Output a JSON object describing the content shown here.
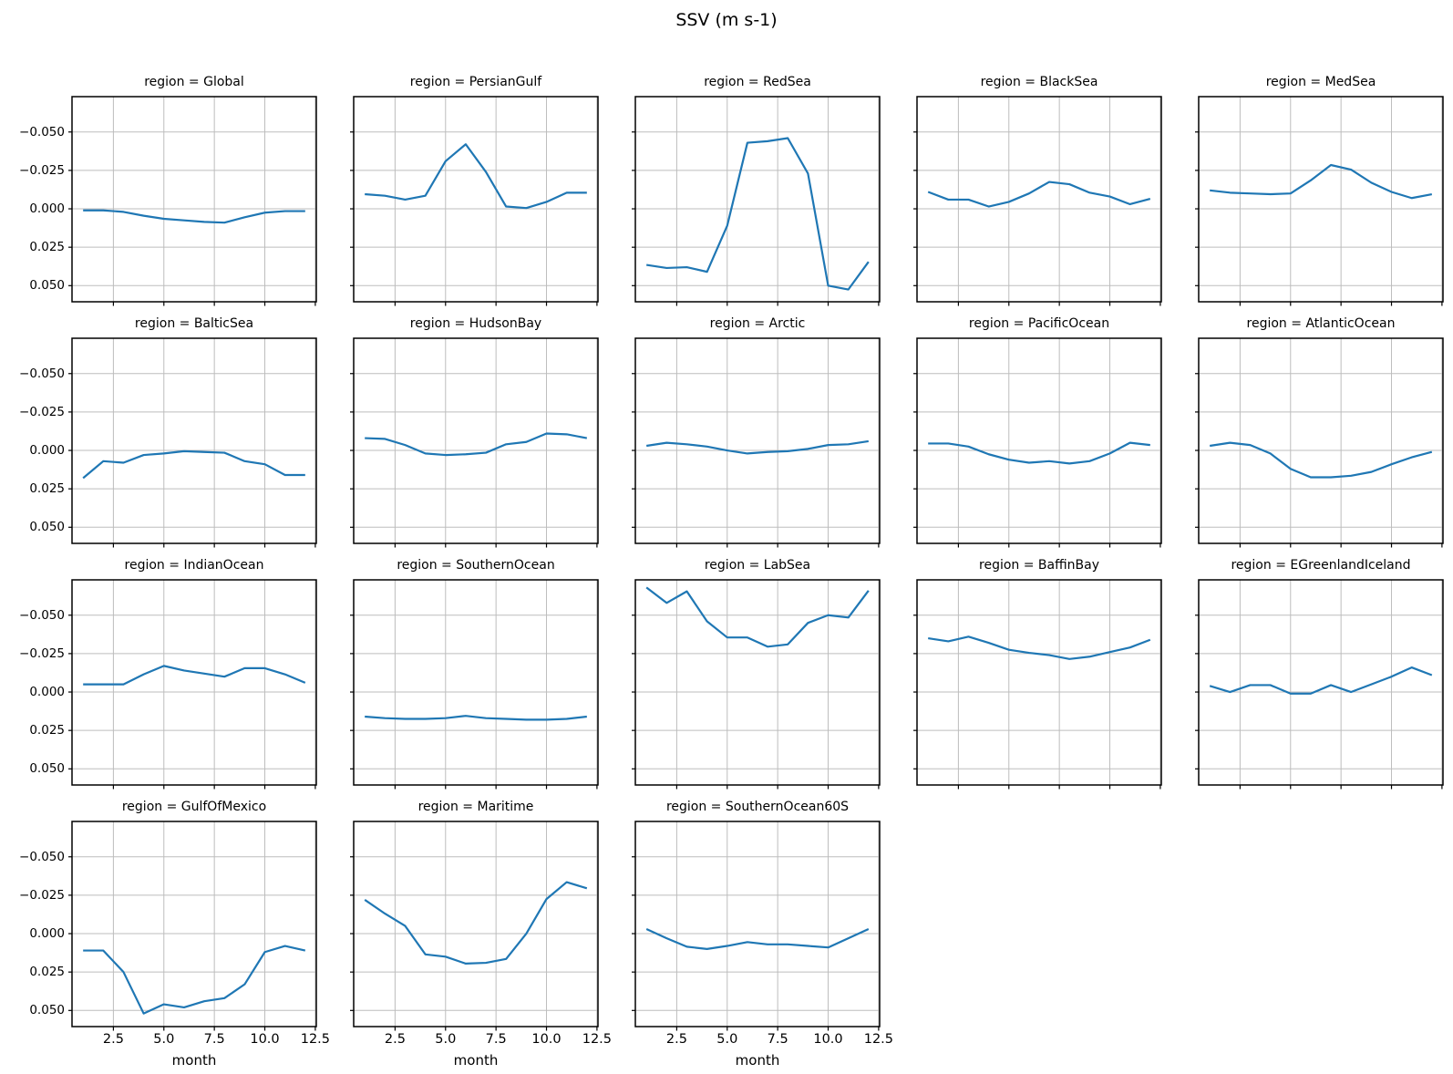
{
  "chart_data": {
    "type": "line",
    "title": "SSV (m s-1)",
    "xlabel": "month",
    "line_color": "#1f77b4",
    "grid_color": "#bdbdbd",
    "spine_color": "#000000",
    "grid": true,
    "legend": "none",
    "y_axis_inverted": true,
    "x": [
      1,
      2,
      3,
      4,
      5,
      6,
      7,
      8,
      9,
      10,
      11,
      12
    ],
    "xlim": [
      0.45,
      12.55
    ],
    "ylim_top": -0.073,
    "ylim_bottom": 0.0605,
    "x_ticks": [
      2.5,
      5.0,
      7.5,
      10.0,
      12.5
    ],
    "x_tick_labels": [
      "2.5",
      "5.0",
      "7.5",
      "10.0",
      "12.5"
    ],
    "y_ticks": [
      -0.05,
      -0.025,
      0.0,
      0.025,
      0.05
    ],
    "y_tick_labels": [
      "−0.050",
      "−0.025",
      "0.000",
      "0.025",
      "0.050"
    ],
    "facet_title_prefix": "region = ",
    "ncols": 5,
    "facets": [
      {
        "region": "Global",
        "title": "region = Global",
        "values": [
          0.001,
          0.001,
          0.002,
          0.0045,
          0.0065,
          0.0075,
          0.0085,
          0.009,
          0.0055,
          0.0025,
          0.0015,
          0.0015
        ]
      },
      {
        "region": "PersianGulf",
        "title": "region = PersianGulf",
        "values": [
          -0.0095,
          -0.0085,
          -0.006,
          -0.0085,
          -0.031,
          -0.042,
          -0.024,
          -0.0015,
          -0.0005,
          -0.0045,
          -0.0105,
          -0.0105
        ]
      },
      {
        "region": "RedSea",
        "title": "region = RedSea",
        "values": [
          0.0365,
          0.0385,
          0.038,
          0.041,
          0.011,
          -0.043,
          -0.044,
          -0.046,
          -0.023,
          0.05,
          0.0525,
          0.0345
        ]
      },
      {
        "region": "BlackSea",
        "title": "region = BlackSea",
        "values": [
          -0.011,
          -0.006,
          -0.006,
          -0.0015,
          -0.0045,
          -0.01,
          -0.0175,
          -0.016,
          -0.0105,
          -0.008,
          -0.003,
          -0.0065
        ]
      },
      {
        "region": "MedSea",
        "title": "region = MedSea",
        "values": [
          -0.012,
          -0.0105,
          -0.01,
          -0.0095,
          -0.01,
          -0.0185,
          -0.0285,
          -0.0255,
          -0.017,
          -0.011,
          -0.007,
          -0.0095
        ]
      },
      {
        "region": "BalticSea",
        "title": "region = BalticSea",
        "values": [
          0.018,
          0.007,
          0.008,
          0.003,
          0.002,
          0.0005,
          0.001,
          0.0015,
          0.007,
          0.009,
          0.016,
          0.016
        ]
      },
      {
        "region": "HudsonBay",
        "title": "region = HudsonBay",
        "values": [
          -0.008,
          -0.0075,
          -0.0035,
          0.002,
          0.003,
          0.0025,
          0.0015,
          -0.004,
          -0.0055,
          -0.011,
          -0.0105,
          -0.008
        ]
      },
      {
        "region": "Arctic",
        "title": "region = Arctic",
        "values": [
          -0.003,
          -0.005,
          -0.004,
          -0.0025,
          0.0,
          0.002,
          0.001,
          0.0005,
          -0.001,
          -0.0035,
          -0.004,
          -0.006
        ]
      },
      {
        "region": "PacificOcean",
        "title": "region = PacificOcean",
        "values": [
          -0.0045,
          -0.0045,
          -0.0025,
          0.0025,
          0.006,
          0.008,
          0.007,
          0.0085,
          0.007,
          0.002,
          -0.005,
          -0.0035
        ]
      },
      {
        "region": "AtlanticOcean",
        "title": "region = AtlanticOcean",
        "values": [
          -0.003,
          -0.005,
          -0.0035,
          0.002,
          0.012,
          0.0175,
          0.0175,
          0.0165,
          0.014,
          0.009,
          0.0045,
          0.001
        ]
      },
      {
        "region": "IndianOcean",
        "title": "region = IndianOcean",
        "values": [
          -0.005,
          -0.005,
          -0.005,
          -0.0115,
          -0.017,
          -0.014,
          -0.012,
          -0.01,
          -0.0155,
          -0.0155,
          -0.0115,
          -0.006
        ]
      },
      {
        "region": "SouthernOcean",
        "title": "region = SouthernOcean",
        "values": [
          0.016,
          0.017,
          0.0175,
          0.0175,
          0.017,
          0.0155,
          0.017,
          0.0175,
          0.018,
          0.018,
          0.0175,
          0.016
        ]
      },
      {
        "region": "LabSea",
        "title": "region = LabSea",
        "values": [
          -0.068,
          -0.058,
          -0.0655,
          -0.046,
          -0.0355,
          -0.0355,
          -0.0295,
          -0.031,
          -0.045,
          -0.05,
          -0.0485,
          -0.066
        ]
      },
      {
        "region": "BaffinBay",
        "title": "region = BaffinBay",
        "values": [
          -0.035,
          -0.033,
          -0.036,
          -0.032,
          -0.0275,
          -0.0255,
          -0.024,
          -0.0215,
          -0.023,
          -0.026,
          -0.029,
          -0.034
        ]
      },
      {
        "region": "EGreenlandIceland",
        "title": "region = EGreenlandIceland",
        "values": [
          -0.004,
          0.0,
          -0.0045,
          -0.0045,
          0.001,
          0.001,
          -0.0045,
          0.0,
          -0.005,
          -0.01,
          -0.016,
          -0.011
        ]
      },
      {
        "region": "GulfOfMexico",
        "title": "region = GulfOfMexico",
        "values": [
          0.011,
          0.011,
          0.025,
          0.052,
          0.046,
          0.048,
          0.044,
          0.042,
          0.033,
          0.012,
          0.008,
          0.011
        ]
      },
      {
        "region": "Maritime",
        "title": "region = Maritime",
        "values": [
          -0.022,
          -0.013,
          -0.005,
          0.0135,
          0.015,
          0.0195,
          0.019,
          0.0165,
          0.0,
          -0.0225,
          -0.0335,
          -0.0295
        ]
      },
      {
        "region": "SouthernOcean60S",
        "title": "region = SouthernOcean60S",
        "values": [
          -0.003,
          0.003,
          0.0085,
          0.01,
          0.008,
          0.0055,
          0.007,
          0.007,
          0.008,
          0.009,
          0.003,
          -0.003
        ]
      }
    ]
  }
}
